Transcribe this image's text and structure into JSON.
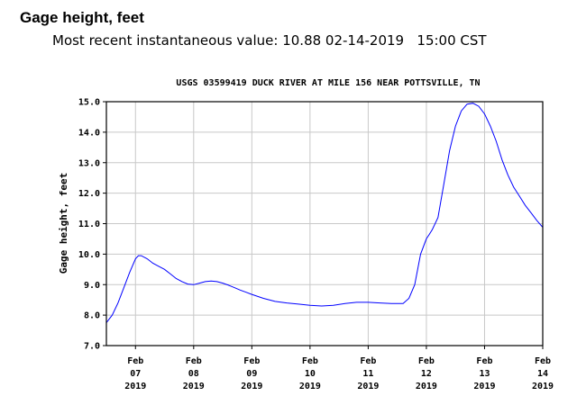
{
  "header": {
    "title": "Gage height, feet",
    "recent_value": "Most recent instantaneous value: 10.88 02-14-2019   15:00 CST"
  },
  "chart_data": {
    "type": "line",
    "title": "USGS 03599419 DUCK RIVER AT MILE 156 NEAR POTTSVILLE, TN",
    "ylabel": "Gage height, feet",
    "xlabel": "",
    "ylim": [
      7.0,
      15.0
    ],
    "yticks": [
      "7.0",
      "8.0",
      "9.0",
      "10.0",
      "11.0",
      "12.0",
      "13.0",
      "14.0",
      "15.0"
    ],
    "xlim_days": [
      6.5,
      14.0
    ],
    "xticks": [
      {
        "day": 7,
        "line1": "Feb",
        "line2": "07",
        "line3": "2019"
      },
      {
        "day": 8,
        "line1": "Feb",
        "line2": "08",
        "line3": "2019"
      },
      {
        "day": 9,
        "line1": "Feb",
        "line2": "09",
        "line3": "2019"
      },
      {
        "day": 10,
        "line1": "Feb",
        "line2": "10",
        "line3": "2019"
      },
      {
        "day": 11,
        "line1": "Feb",
        "line2": "11",
        "line3": "2019"
      },
      {
        "day": 12,
        "line1": "Feb",
        "line2": "12",
        "line3": "2019"
      },
      {
        "day": 13,
        "line1": "Feb",
        "line2": "13",
        "line3": "2019"
      },
      {
        "day": 14,
        "line1": "Feb",
        "line2": "14",
        "line3": "2019"
      }
    ],
    "grid": true,
    "line_color": "#0000ff",
    "series": [
      {
        "x": [
          6.5,
          6.6,
          6.7,
          6.8,
          6.9,
          7.0,
          7.05,
          7.1,
          7.2,
          7.3,
          7.4,
          7.5,
          7.6,
          7.7,
          7.8,
          7.9,
          8.0,
          8.1,
          8.2,
          8.3,
          8.4,
          8.5,
          8.6,
          8.7,
          8.8,
          8.9,
          9.0,
          9.2,
          9.4,
          9.6,
          9.8,
          10.0,
          10.2,
          10.4,
          10.6,
          10.8,
          11.0,
          11.2,
          11.4,
          11.6,
          11.7,
          11.8,
          11.9,
          12.0,
          12.05,
          12.1,
          12.2,
          12.3,
          12.4,
          12.5,
          12.6,
          12.7,
          12.8,
          12.9,
          13.0,
          13.1,
          13.2,
          13.3,
          13.4,
          13.5,
          13.6,
          13.7,
          13.8,
          13.9,
          14.0
        ],
        "y": [
          7.75,
          8.0,
          8.4,
          8.9,
          9.4,
          9.85,
          9.95,
          9.95,
          9.85,
          9.7,
          9.6,
          9.5,
          9.35,
          9.2,
          9.1,
          9.02,
          9.0,
          9.05,
          9.1,
          9.12,
          9.1,
          9.05,
          8.98,
          8.9,
          8.82,
          8.75,
          8.68,
          8.55,
          8.45,
          8.4,
          8.36,
          8.32,
          8.3,
          8.32,
          8.38,
          8.42,
          8.42,
          8.4,
          8.38,
          8.38,
          8.55,
          9.0,
          10.0,
          10.5,
          10.65,
          10.8,
          11.2,
          12.3,
          13.4,
          14.2,
          14.7,
          14.92,
          14.95,
          14.85,
          14.6,
          14.2,
          13.7,
          13.1,
          12.6,
          12.2,
          11.9,
          11.6,
          11.35,
          11.1,
          10.88
        ]
      }
    ]
  }
}
